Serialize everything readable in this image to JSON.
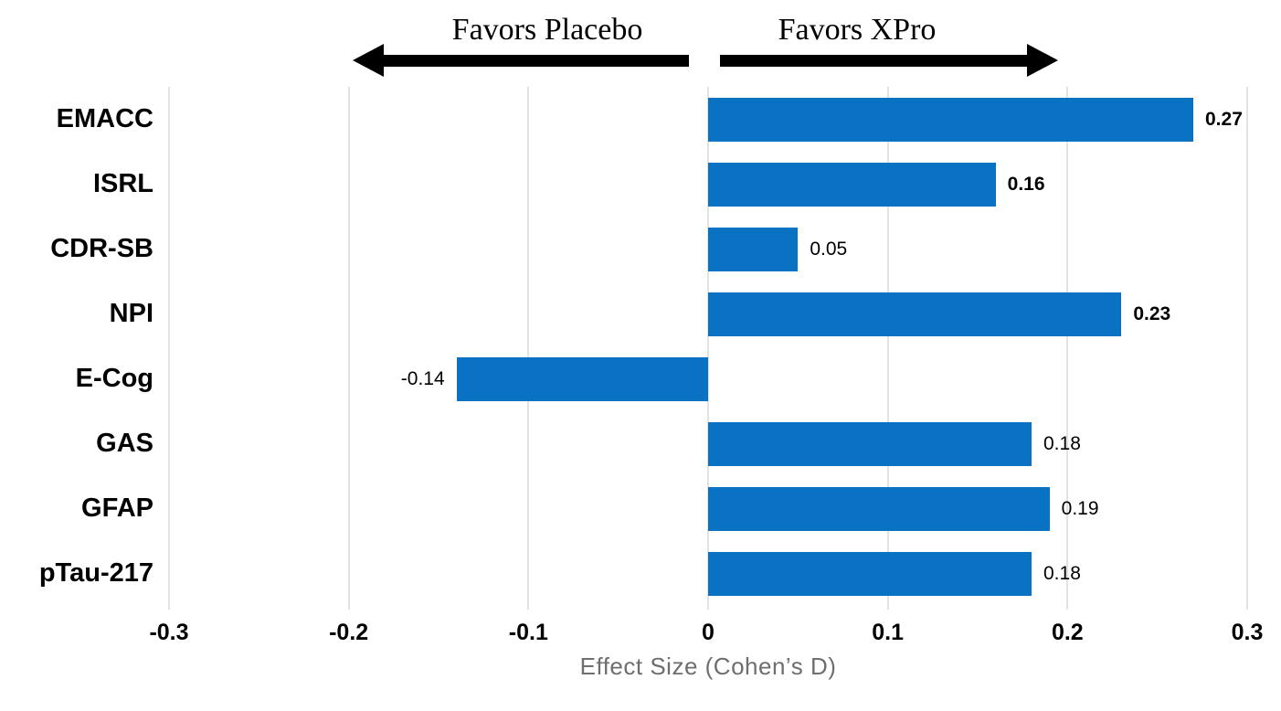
{
  "annotations": {
    "left_label": "Favors Placebo",
    "right_label": "Favors XPro"
  },
  "chart_data": {
    "type": "bar",
    "orientation": "horizontal",
    "title": "",
    "categories": [
      "EMACC",
      "ISRL",
      "CDR-SB",
      "NPI",
      "E-Cog",
      "GAS",
      "GFAP",
      "pTau-217"
    ],
    "values": [
      0.27,
      0.16,
      0.05,
      0.23,
      -0.14,
      0.18,
      0.19,
      0.18
    ],
    "value_labels": [
      "0.27",
      "0.16",
      "0.05",
      "0.23",
      "-0.14",
      "0.18",
      "0.19",
      "0.18"
    ],
    "value_label_bold": [
      true,
      true,
      false,
      true,
      false,
      false,
      false,
      false
    ],
    "xlabel": "Effect Size (Cohen’s D)",
    "ylabel": "",
    "xlim": [
      -0.3,
      0.3
    ],
    "xticks": [
      -0.3,
      -0.2,
      -0.1,
      0,
      0.1,
      0.2,
      0.3
    ],
    "xtick_labels": [
      "-0.3",
      "-0.2",
      "-0.1",
      "0",
      "0.1",
      "0.2",
      "0.3"
    ],
    "grid": true,
    "legend": "none",
    "bar_color": "#0a72c2",
    "gridline_color": "#e2e2e2"
  }
}
